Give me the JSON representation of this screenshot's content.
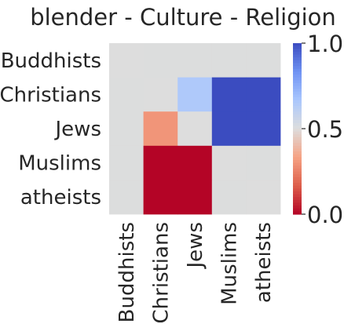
{
  "chart_data": {
    "type": "heatmap",
    "title": "blender - Culture - Religion",
    "xlabel": "",
    "ylabel": "",
    "row_labels": [
      "Buddhists",
      "Christians",
      "Jews",
      "Muslims",
      "atheists"
    ],
    "col_labels": [
      "Buddhists",
      "Christians",
      "Jews",
      "Muslims",
      "atheists"
    ],
    "values": [
      [
        0.5,
        null,
        null,
        null,
        null
      ],
      [
        null,
        0.5,
        0.65,
        1.0,
        1.0
      ],
      [
        null,
        0.3,
        0.5,
        1.0,
        1.0
      ],
      [
        null,
        0.0,
        0.0,
        0.5,
        null
      ],
      [
        null,
        0.0,
        0.0,
        null,
        0.5
      ]
    ],
    "missing_color": "#dcdddd",
    "colormap": "coolwarm",
    "vmin": 0.0,
    "vmax": 1.0,
    "colorbar": {
      "ticks": [
        {
          "value": 1.0,
          "label": "1.0"
        },
        {
          "value": 0.5,
          "label": "0.5"
        },
        {
          "value": 0.0,
          "label": "0.0"
        }
      ],
      "stops": [
        "#b40426",
        "#dd5f4b",
        "#f6a385",
        "#dddddd",
        "#aac7fd",
        "#6f92f3",
        "#3b4cc0"
      ]
    }
  }
}
